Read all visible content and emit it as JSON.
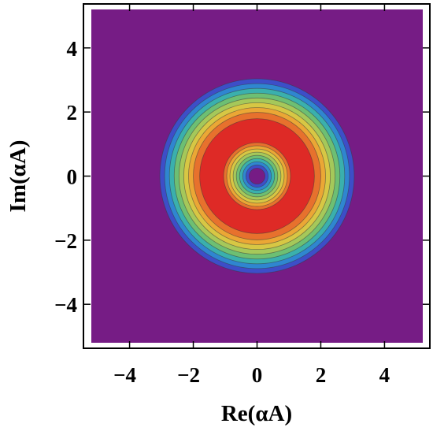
{
  "chart_data": {
    "type": "heatmap",
    "subtype": "filled-contour",
    "title": "",
    "xlabel": "Re(αA)",
    "ylabel": "Im(αA)",
    "xlim": [
      -5.2,
      5.2
    ],
    "ylim": [
      -5.2,
      5.2
    ],
    "x_ticks": [
      -4,
      -2,
      0,
      2,
      4
    ],
    "y_ticks": [
      -4,
      -2,
      0,
      2,
      4
    ],
    "x_tick_labels": [
      "−4",
      "−2",
      "0",
      "2",
      "4"
    ],
    "y_tick_labels": [
      "−4",
      "−2",
      "0",
      "2",
      "4"
    ],
    "grid": false,
    "legend": "none",
    "background_color": "#761c85",
    "contour_levels": [
      {
        "outer_radius": 3.05,
        "color": "#3d4ec8"
      },
      {
        "outer_radius": 2.9,
        "color": "#2f86d0"
      },
      {
        "outer_radius": 2.75,
        "color": "#3ab0ad"
      },
      {
        "outer_radius": 2.6,
        "color": "#6dbf73"
      },
      {
        "outer_radius": 2.45,
        "color": "#a5c85a"
      },
      {
        "outer_radius": 2.3,
        "color": "#d7c744"
      },
      {
        "outer_radius": 2.15,
        "color": "#eba735"
      },
      {
        "outer_radius": 2.0,
        "color": "#e7712d"
      },
      {
        "outer_radius": 1.8,
        "color": "#de2a26"
      },
      {
        "outer_radius": 1.05,
        "color": "#e7712d"
      },
      {
        "outer_radius": 0.95,
        "color": "#eba735"
      },
      {
        "outer_radius": 0.85,
        "color": "#d7c744"
      },
      {
        "outer_radius": 0.75,
        "color": "#a5c85a"
      },
      {
        "outer_radius": 0.65,
        "color": "#6dbf73"
      },
      {
        "outer_radius": 0.55,
        "color": "#3ab0ad"
      },
      {
        "outer_radius": 0.45,
        "color": "#2f86d0"
      },
      {
        "outer_radius": 0.35,
        "color": "#3d4ec8"
      },
      {
        "outer_radius": 0.25,
        "color": "#761c85"
      }
    ]
  }
}
